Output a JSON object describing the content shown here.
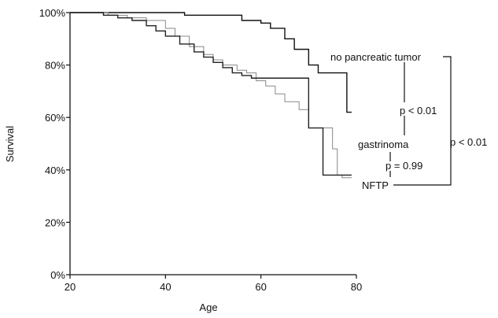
{
  "chart_data": {
    "type": "line",
    "xlabel": "Age",
    "ylabel": "Survival",
    "xlim": [
      20,
      80
    ],
    "ylim": [
      0,
      100
    ],
    "x_ticks": [
      20,
      40,
      60,
      80
    ],
    "x_tick_labels": [
      "20",
      "40",
      "60",
      "80"
    ],
    "y_ticks": [
      0,
      20,
      40,
      60,
      80,
      100
    ],
    "y_tick_labels": [
      "0%",
      "20%",
      "40%",
      "60%",
      "80%",
      "100%"
    ],
    "series": [
      {
        "name": "no pancreatic tumor",
        "color": "#111111",
        "step": true,
        "points": [
          [
            20,
            100
          ],
          [
            40,
            100
          ],
          [
            44,
            99
          ],
          [
            53,
            99
          ],
          [
            56,
            97
          ],
          [
            60,
            96
          ],
          [
            62,
            94
          ],
          [
            65,
            90
          ],
          [
            67,
            86
          ],
          [
            70,
            80
          ],
          [
            72,
            77
          ],
          [
            78,
            77
          ],
          [
            78,
            62
          ],
          [
            79,
            62
          ]
        ]
      },
      {
        "name": "gastrinoma",
        "color": "#888888",
        "step": true,
        "points": [
          [
            20,
            100
          ],
          [
            28,
            99
          ],
          [
            32,
            98
          ],
          [
            36,
            97
          ],
          [
            40,
            94
          ],
          [
            42,
            91
          ],
          [
            45,
            87
          ],
          [
            48,
            84
          ],
          [
            50,
            82
          ],
          [
            52,
            80
          ],
          [
            55,
            78
          ],
          [
            57,
            77
          ],
          [
            59,
            74
          ],
          [
            61,
            72
          ],
          [
            63,
            69
          ],
          [
            65,
            66
          ],
          [
            68,
            63
          ],
          [
            70,
            56
          ],
          [
            75,
            56
          ],
          [
            75,
            48
          ],
          [
            76,
            48
          ],
          [
            76,
            38
          ],
          [
            77,
            38
          ],
          [
            77,
            37
          ],
          [
            79,
            37
          ]
        ]
      },
      {
        "name": "NFTP",
        "color": "#222222",
        "step": true,
        "points": [
          [
            20,
            100
          ],
          [
            27,
            99
          ],
          [
            30,
            98
          ],
          [
            33,
            97
          ],
          [
            36,
            95
          ],
          [
            38,
            93
          ],
          [
            40,
            91
          ],
          [
            43,
            88
          ],
          [
            46,
            85
          ],
          [
            48,
            83
          ],
          [
            50,
            81
          ],
          [
            52,
            79
          ],
          [
            54,
            77
          ],
          [
            56,
            76
          ],
          [
            58,
            75
          ],
          [
            60,
            75
          ],
          [
            63,
            75
          ],
          [
            67,
            75
          ],
          [
            70,
            75
          ],
          [
            70,
            56
          ],
          [
            72,
            56
          ],
          [
            73,
            38
          ],
          [
            79,
            38
          ]
        ]
      }
    ],
    "annotations": {
      "no_pancreatic_tumor": "no pancreatic tumor",
      "gastrinoma": "gastrinoma",
      "nftp": "NFTP",
      "p_top": "p < 0.01",
      "p_middle": "p = 0.99",
      "p_right": "p < 0.01"
    }
  }
}
